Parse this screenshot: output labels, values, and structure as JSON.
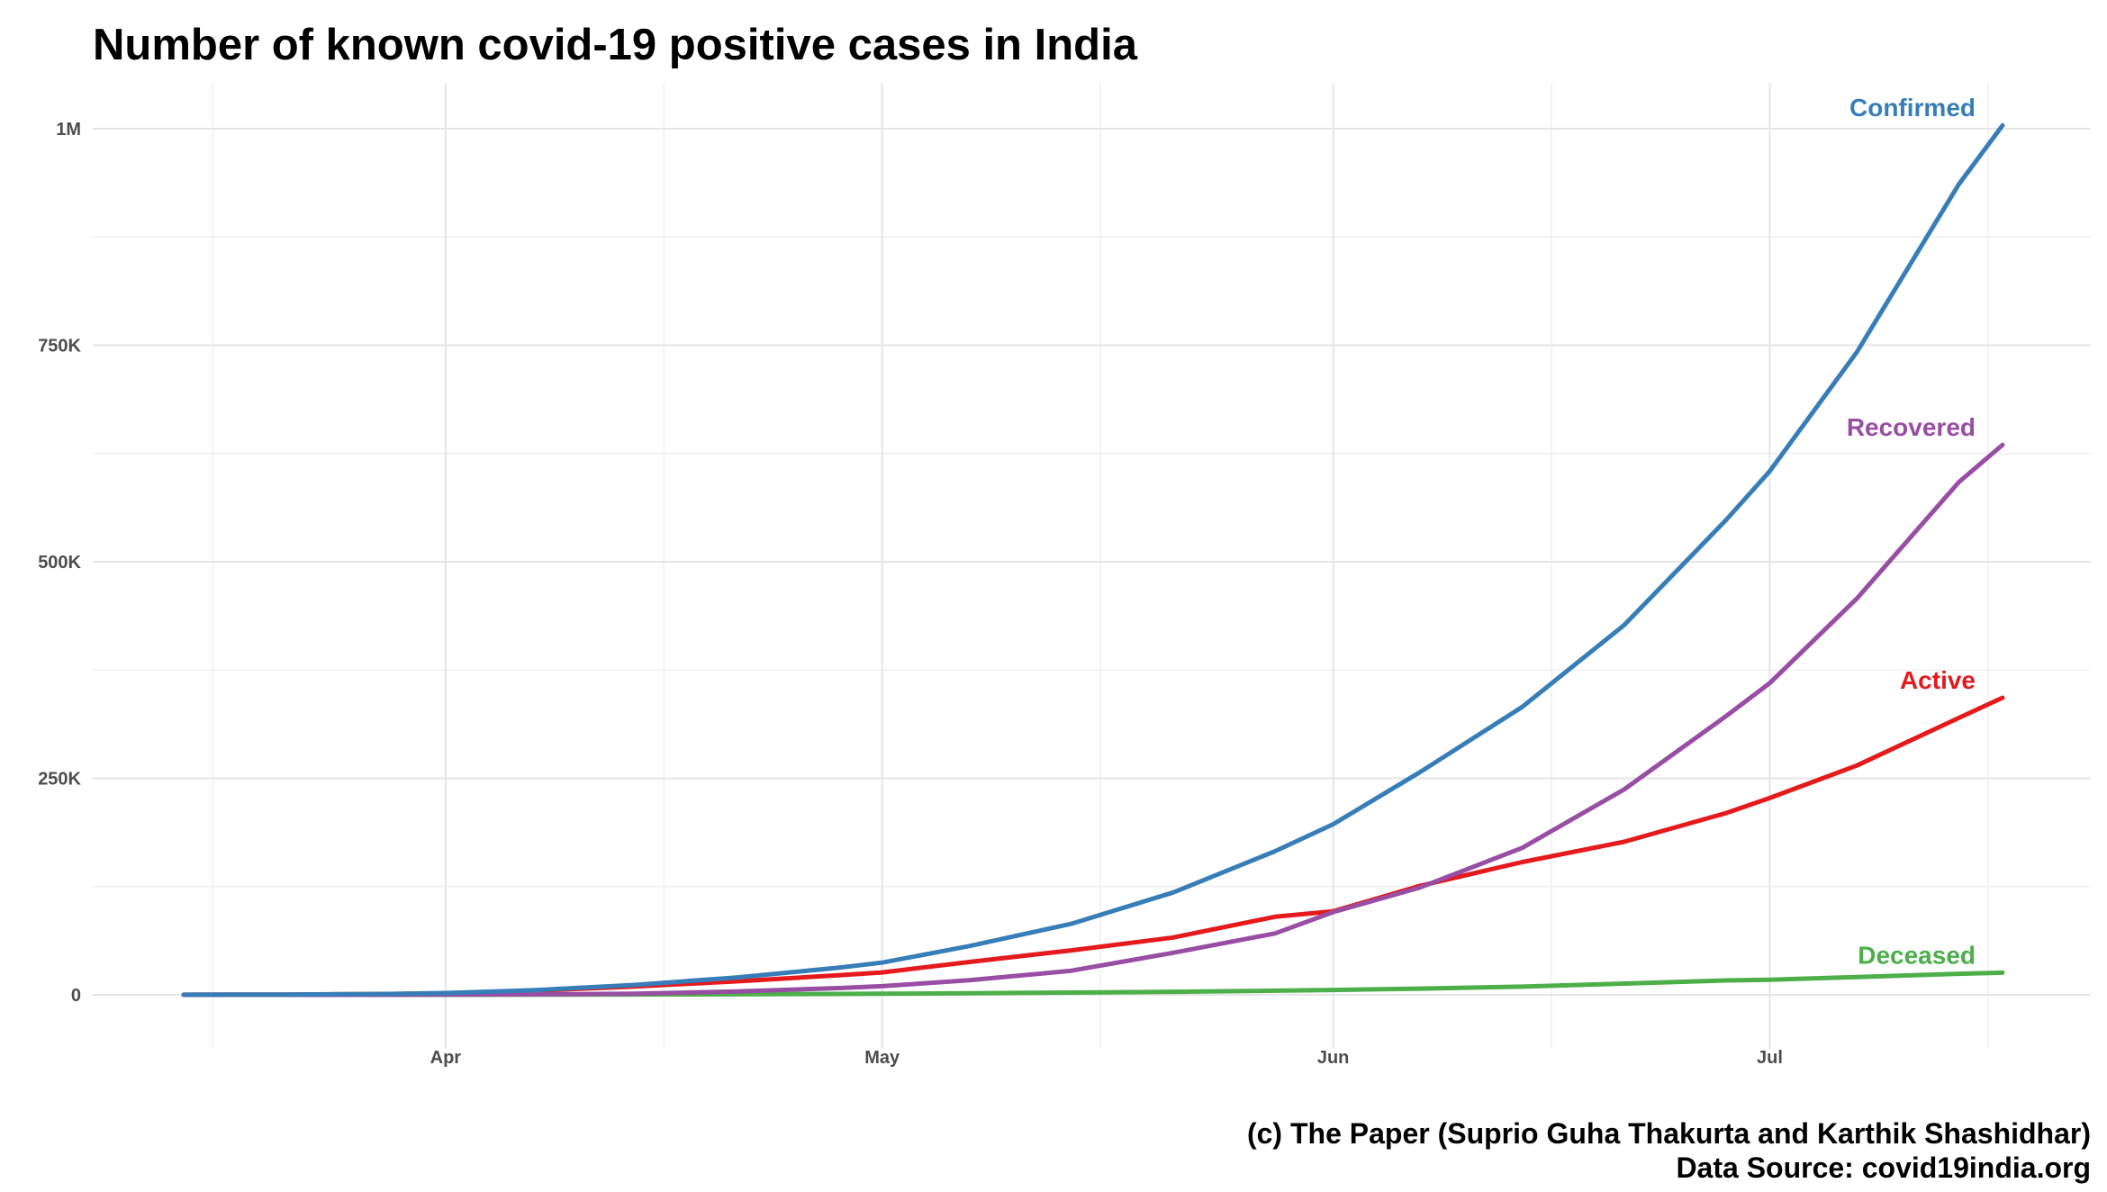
{
  "title": "Number of known covid-19 positive cases in India",
  "caption": {
    "line1": "(c) The Paper (Suprio Guha Thakurta and Karthik Shashidhar)",
    "line2": "Data Source: covid19india.org"
  },
  "chart_data": {
    "type": "line",
    "title": "Number of known covid-19 positive cases in India",
    "xlabel": "",
    "ylabel": "",
    "grid": true,
    "legend": "direct labels at line ends",
    "x_range": [
      "2020-03-14",
      "2020-07-17"
    ],
    "ylim": [
      0,
      1050000
    ],
    "x_ticks": [
      {
        "date": "2020-04-01",
        "label": "Apr"
      },
      {
        "date": "2020-05-01",
        "label": "May"
      },
      {
        "date": "2020-06-01",
        "label": "Jun"
      },
      {
        "date": "2020-07-01",
        "label": "Jul"
      }
    ],
    "x_minor_ticks": [
      "2020-03-16",
      "2020-04-16",
      "2020-05-16",
      "2020-06-16",
      "2020-07-16"
    ],
    "y_ticks": [
      {
        "value": 0,
        "label": "0"
      },
      {
        "value": 250000,
        "label": "250K"
      },
      {
        "value": 500000,
        "label": "500K"
      },
      {
        "value": 750000,
        "label": "750K"
      },
      {
        "value": 1000000,
        "label": "1M"
      }
    ],
    "x": [
      "2020-03-14",
      "2020-03-21",
      "2020-03-28",
      "2020-04-01",
      "2020-04-07",
      "2020-04-14",
      "2020-04-21",
      "2020-04-28",
      "2020-05-01",
      "2020-05-07",
      "2020-05-14",
      "2020-05-21",
      "2020-05-28",
      "2020-06-01",
      "2020-06-07",
      "2020-06-14",
      "2020-06-21",
      "2020-06-28",
      "2020-07-01",
      "2020-07-07",
      "2020-07-14",
      "2020-07-17"
    ],
    "series": [
      {
        "name": "Confirmed",
        "color": "#377eb8",
        "values": [
          100,
          330,
          1050,
          2050,
          5350,
          11430,
          20080,
          31330,
          37260,
          56340,
          81970,
          118230,
          165800,
          197000,
          257500,
          332500,
          426900,
          548300,
          604600,
          742400,
          936000,
          1004000
        ]
      },
      {
        "name": "Recovered",
        "color": "#984ea3",
        "values": [
          10,
          30,
          100,
          170,
          470,
          1360,
          3870,
          7750,
          10020,
          16800,
          27900,
          48500,
          70900,
          95500,
          124100,
          169800,
          237200,
          321800,
          359900,
          457800,
          592000,
          635000
        ]
      },
      {
        "name": "Active",
        "color": "#e41a1c",
        "values": [
          88,
          296,
          924,
          1820,
          4720,
          9670,
          15570,
          22580,
          25900,
          37920,
          51400,
          66200,
          90100,
          96500,
          126000,
          153300,
          176700,
          209900,
          227200,
          264900,
          319800,
          343000
        ]
      },
      {
        "name": "Deceased",
        "color": "#4daf4a",
        "values": [
          2,
          4,
          26,
          60,
          160,
          400,
          640,
          1000,
          1220,
          1890,
          2650,
          3580,
          4800,
          5600,
          7200,
          9500,
          13000,
          16600,
          17400,
          20600,
          24300,
          25600
        ]
      }
    ]
  }
}
